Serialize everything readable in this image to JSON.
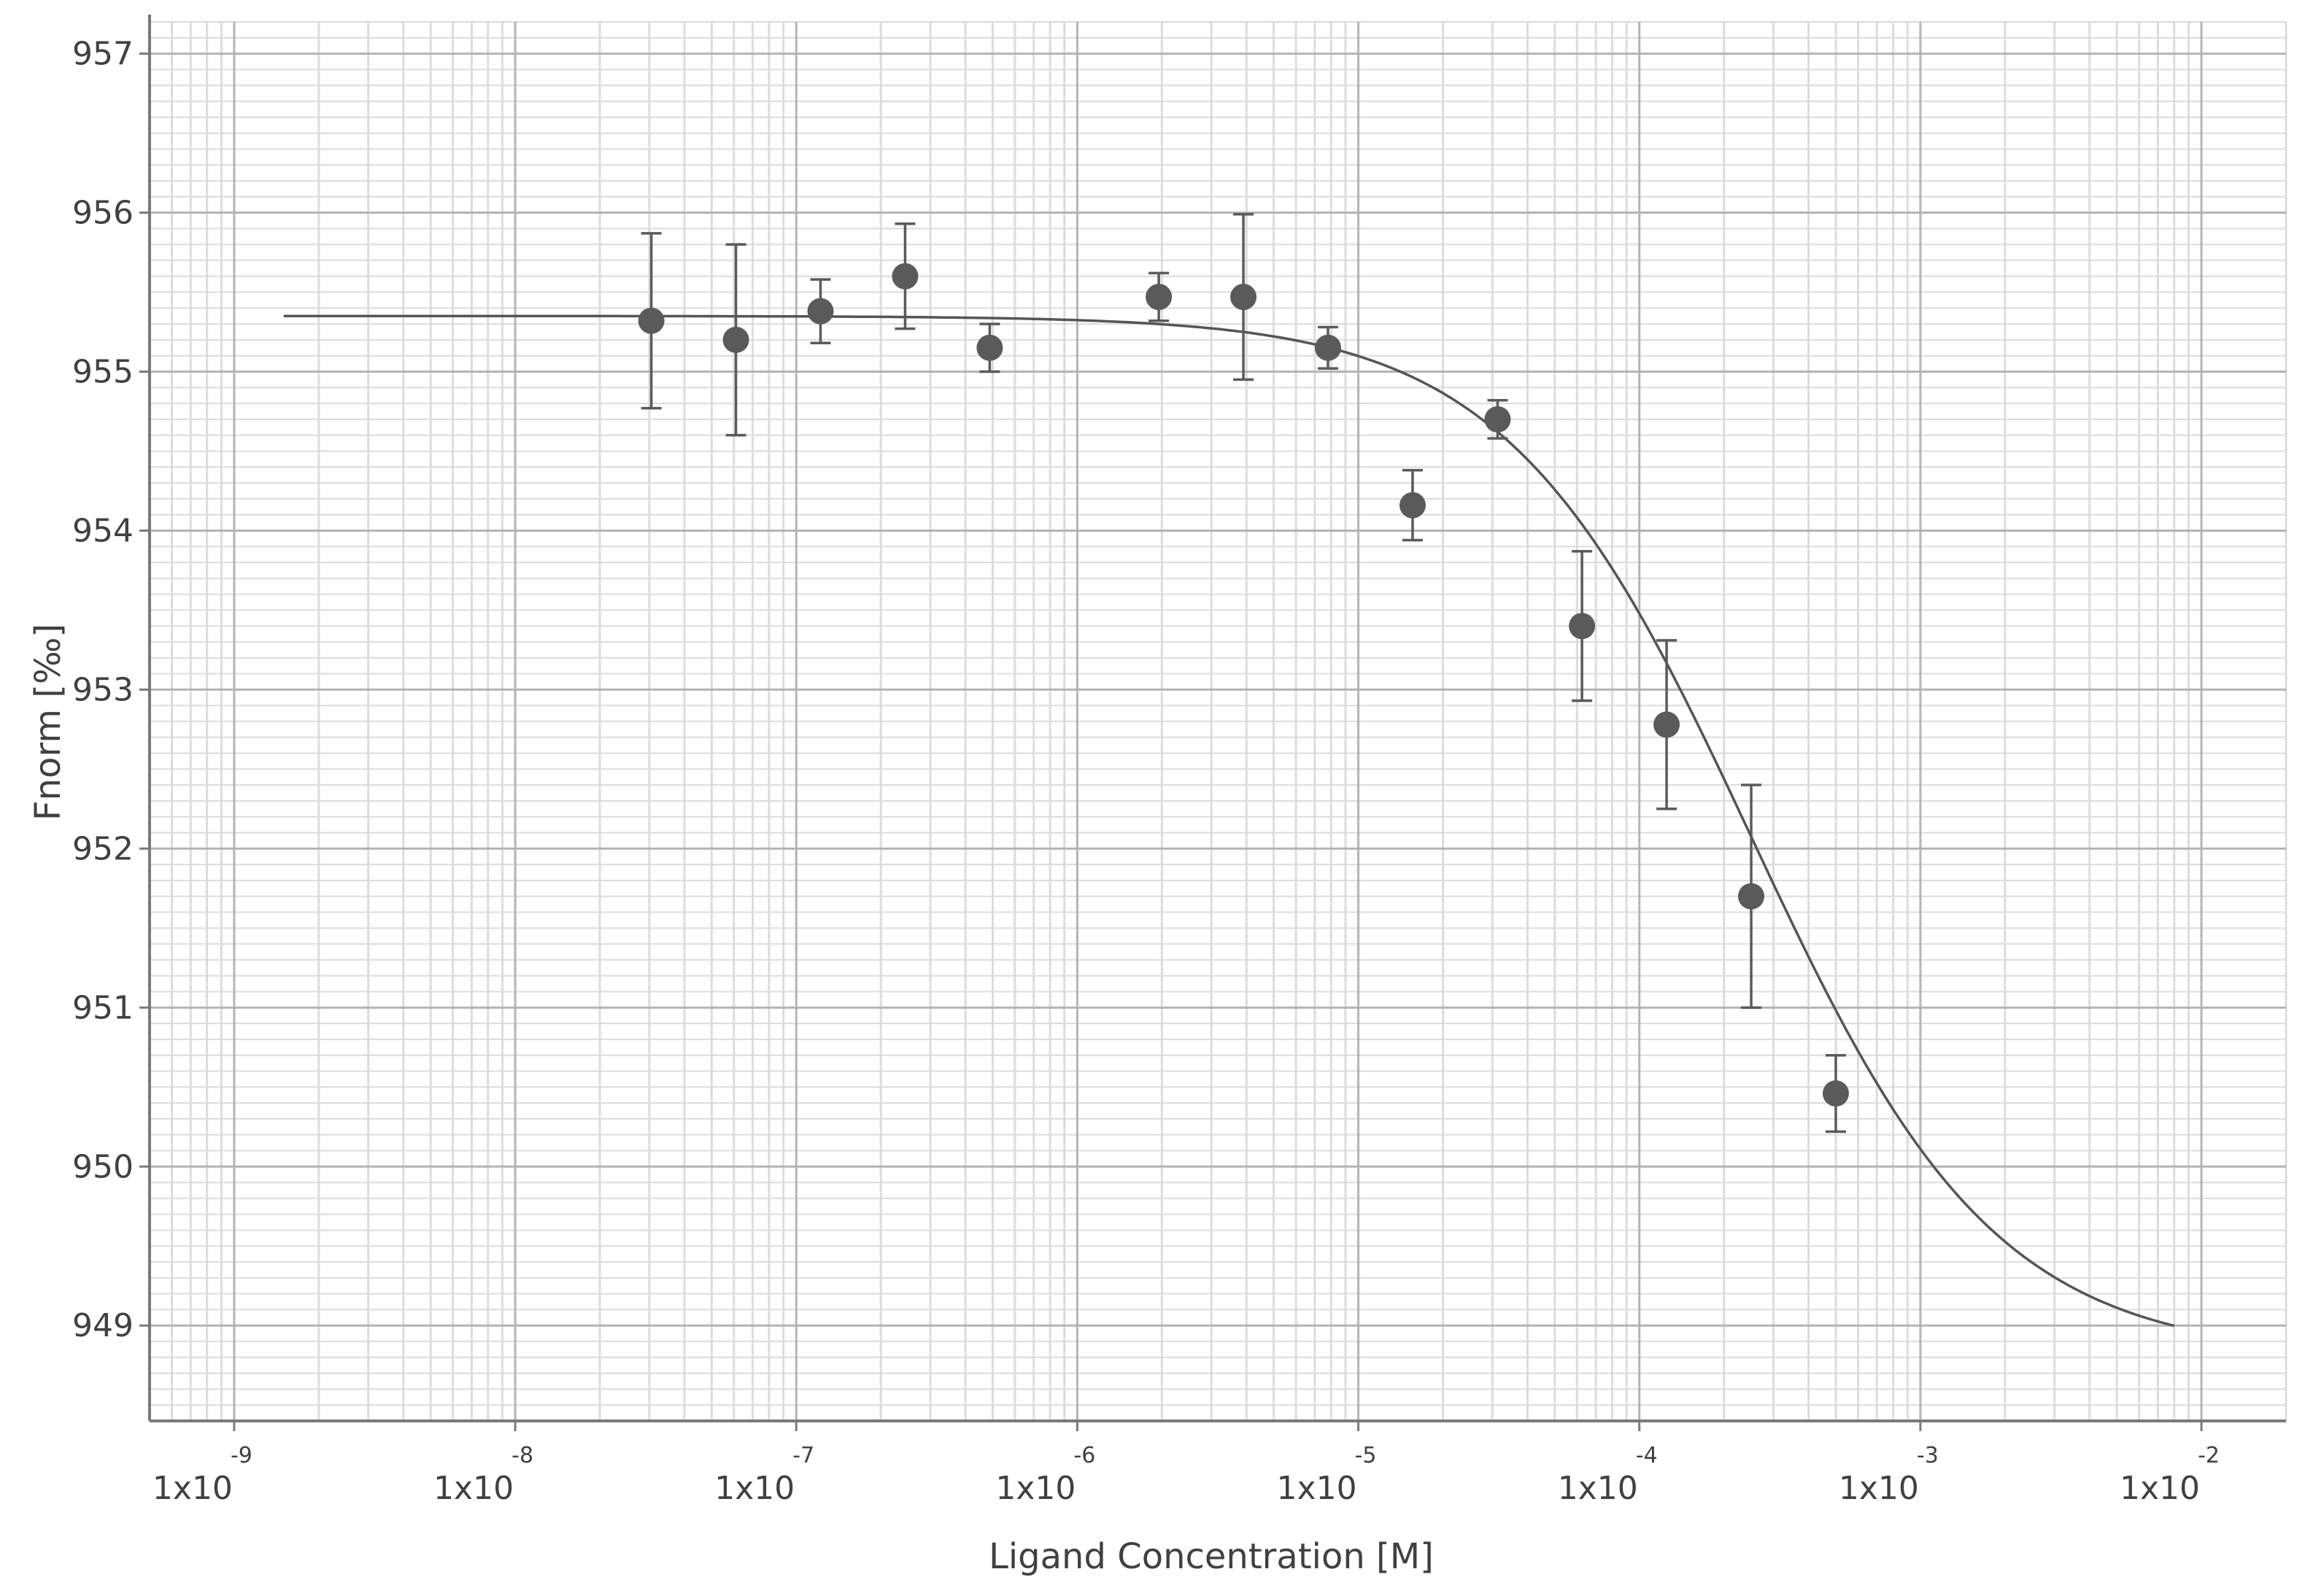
{
  "chart_data": {
    "type": "scatter",
    "title": "",
    "xlabel": "Ligand Concentration [M]",
    "ylabel": "Fnorm [‰]",
    "x_scale": "log",
    "xlim": [
      5e-10,
      0.02
    ],
    "ylim": [
      948.4,
      957.2
    ],
    "grid": true,
    "legend": "none",
    "y_ticks": [
      "949",
      "950",
      "951",
      "952",
      "953",
      "954",
      "955",
      "956",
      "957"
    ],
    "x_ticks": [
      {
        "value": 1e-09,
        "base": "1x10",
        "exp": "-9"
      },
      {
        "value": 1e-08,
        "base": "1x10",
        "exp": "-8"
      },
      {
        "value": 1e-07,
        "base": "1x10",
        "exp": "-7"
      },
      {
        "value": 1e-06,
        "base": "1x10",
        "exp": "-6"
      },
      {
        "value": 1e-05,
        "base": "1x10",
        "exp": "-5"
      },
      {
        "value": 0.0001,
        "base": "1x10",
        "exp": "-4"
      },
      {
        "value": 0.001,
        "base": "1x10",
        "exp": "-3"
      },
      {
        "value": 0.01,
        "base": "1x10",
        "exp": "-2"
      }
    ],
    "points": [
      {
        "x": 3.05e-08,
        "y": 955.32,
        "err": 0.55
      },
      {
        "x": 6.1e-08,
        "y": 955.2,
        "err": 0.6
      },
      {
        "x": 1.22e-07,
        "y": 955.38,
        "err": 0.2
      },
      {
        "x": 2.44e-07,
        "y": 955.6,
        "err": 0.33
      },
      {
        "x": 4.88e-07,
        "y": 955.15,
        "err": 0.15
      },
      {
        "x": 1.95e-06,
        "y": 955.47,
        "err": 0.15
      },
      {
        "x": 3.9e-06,
        "y": 955.47,
        "err": 0.52
      },
      {
        "x": 7.8e-06,
        "y": 955.15,
        "err": 0.13
      },
      {
        "x": 1.56e-05,
        "y": 954.16,
        "err": 0.22
      },
      {
        "x": 3.13e-05,
        "y": 954.7,
        "err": 0.12
      },
      {
        "x": 6.25e-05,
        "y": 953.4,
        "err": 0.47
      },
      {
        "x": 0.000125,
        "y": 952.78,
        "err": 0.53
      },
      {
        "x": 0.00025,
        "y": 951.7,
        "err": 0.7
      },
      {
        "x": 0.0005,
        "y": 950.46,
        "err": 0.24
      }
    ],
    "fit": {
      "model": "sigmoid",
      "unbound": 955.35,
      "bound": 948.8,
      "ec50": 0.00025,
      "hill": 1,
      "x_range": [
        1.5e-09,
        0.008
      ]
    },
    "colors": {
      "point": "#5a5a5a",
      "curve": "#555555",
      "major_grid": "#b4b4b4",
      "minor_grid": "#dcdcdc",
      "axis": "#7a7a7a"
    }
  }
}
